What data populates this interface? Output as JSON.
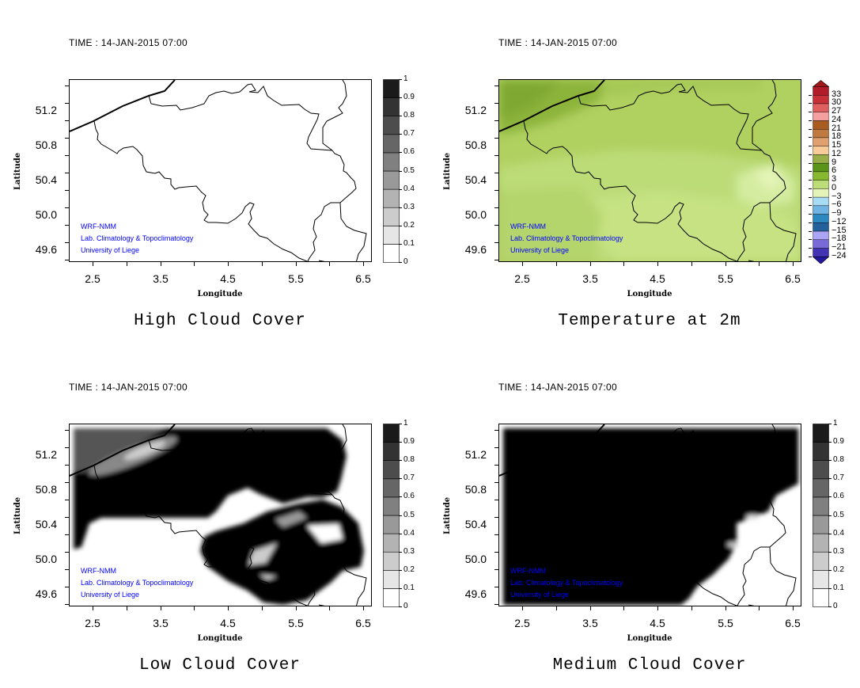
{
  "figure": {
    "time_label": "TIME : 14-JAN-2015 07:00",
    "credits": [
      "WRF-NMM",
      "Lab. Climatology & Topoclimatology",
      "University of Liege"
    ],
    "axes": {
      "xlabel": "Longitude",
      "ylabel": "Latitude",
      "xticks": [
        "2.5",
        "3.5",
        "4.5",
        "5.5",
        "6.5"
      ],
      "yticks": [
        "51.2",
        "50.8",
        "50.4",
        "50.0",
        "49.6"
      ],
      "lon_range": [
        2.15,
        6.62
      ],
      "lat_range": [
        49.46,
        51.56
      ]
    }
  },
  "panels": [
    {
      "key": "high-cloud",
      "title": "High Cloud Cover",
      "field": "high",
      "colorbar": "cloud"
    },
    {
      "key": "temperature",
      "title": "Temperature at 2m",
      "field": "temp",
      "colorbar": "temp"
    },
    {
      "key": "low-cloud",
      "title": "Low Cloud Cover",
      "field": "low",
      "colorbar": "cloud"
    },
    {
      "key": "medium-cloud",
      "title": "Medium Cloud Cover",
      "field": "medium",
      "colorbar": "cloud"
    }
  ],
  "cloud_colorbar": {
    "labels": [
      "0",
      "0.1",
      "0.2",
      "0.3",
      "0.4",
      "0.5",
      "0.6",
      "0.7",
      "0.8",
      "0.9",
      "1"
    ],
    "colors": [
      "#ffffff",
      "#e6e6e6",
      "#cccccc",
      "#b3b3b3",
      "#999999",
      "#808080",
      "#666666",
      "#4d4d4d",
      "#333333",
      "#1a1a1a"
    ]
  },
  "temp_colorbar": {
    "labels": [
      "33",
      "30",
      "27",
      "24",
      "21",
      "18",
      "15",
      "12",
      "9",
      "6",
      "3",
      "0",
      "−3",
      "−6",
      "−9",
      "−12",
      "−15",
      "−18",
      "−21",
      "−24"
    ],
    "colors": [
      "#b01c28",
      "#c83038",
      "#e06060",
      "#f4a0a0",
      "#a85c20",
      "#c07a40",
      "#e0a070",
      "#f8cc98",
      "#98ac48",
      "#5a9418",
      "#88b830",
      "#bcdc78",
      "#e4f4b8",
      "#a8dcf4",
      "#70b4e4",
      "#2c88c0",
      "#24609c",
      "#aca4f4",
      "#7a6ad8",
      "#4434b4"
    ],
    "over_color": "#a01818",
    "under_color": "#2418a0"
  }
}
